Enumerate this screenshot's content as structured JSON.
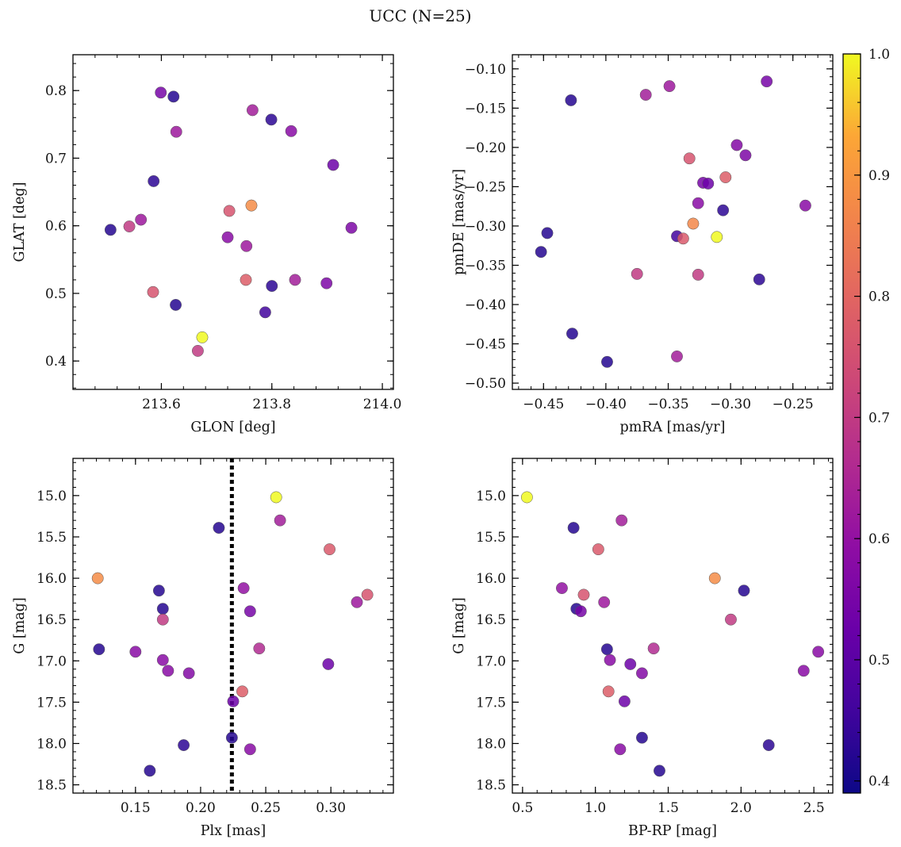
{
  "figure": {
    "title": "UCC (N=25)",
    "colorbar": {
      "colormap": "plasma",
      "range": [
        0.39,
        1.0
      ],
      "ticks": [
        "0.4",
        "0.5",
        "0.6",
        "0.7",
        "0.8",
        "0.9",
        "1.0"
      ]
    }
  },
  "chart_data": [
    {
      "type": "scatter",
      "xlabel": "GLON [deg]",
      "ylabel": "GLAT [deg]",
      "xlim": [
        213.44,
        214.02
      ],
      "ylim": [
        0.358,
        0.853
      ],
      "xticks": [
        "213.6",
        "213.8",
        "214.0"
      ],
      "yticks": [
        "0.4",
        "0.5",
        "0.6",
        "0.7",
        "0.8"
      ],
      "points": [
        {
          "x": 213.599,
          "y": 0.797,
          "c": 0.55
        },
        {
          "x": 213.622,
          "y": 0.791,
          "c": 0.42
        },
        {
          "x": 213.765,
          "y": 0.771,
          "c": 0.63
        },
        {
          "x": 213.799,
          "y": 0.757,
          "c": 0.43
        },
        {
          "x": 213.835,
          "y": 0.74,
          "c": 0.58
        },
        {
          "x": 213.627,
          "y": 0.739,
          "c": 0.62
        },
        {
          "x": 213.911,
          "y": 0.69,
          "c": 0.53
        },
        {
          "x": 213.586,
          "y": 0.666,
          "c": 0.43
        },
        {
          "x": 213.763,
          "y": 0.63,
          "c": 0.88
        },
        {
          "x": 213.723,
          "y": 0.622,
          "c": 0.76
        },
        {
          "x": 213.563,
          "y": 0.609,
          "c": 0.62
        },
        {
          "x": 213.508,
          "y": 0.594,
          "c": 0.42
        },
        {
          "x": 213.542,
          "y": 0.599,
          "c": 0.7
        },
        {
          "x": 213.944,
          "y": 0.597,
          "c": 0.56
        },
        {
          "x": 213.72,
          "y": 0.583,
          "c": 0.58
        },
        {
          "x": 213.754,
          "y": 0.57,
          "c": 0.62
        },
        {
          "x": 213.753,
          "y": 0.52,
          "c": 0.78
        },
        {
          "x": 213.842,
          "y": 0.52,
          "c": 0.63
        },
        {
          "x": 213.899,
          "y": 0.515,
          "c": 0.56
        },
        {
          "x": 213.8,
          "y": 0.511,
          "c": 0.43
        },
        {
          "x": 213.585,
          "y": 0.502,
          "c": 0.76
        },
        {
          "x": 213.626,
          "y": 0.483,
          "c": 0.42
        },
        {
          "x": 213.788,
          "y": 0.472,
          "c": 0.46
        },
        {
          "x": 213.674,
          "y": 0.435,
          "c": 1.0
        },
        {
          "x": 213.666,
          "y": 0.415,
          "c": 0.7
        }
      ]
    },
    {
      "type": "scatter",
      "xlabel": "pmRA [mas/yr]",
      "ylabel": "pmDE [mas/yr]",
      "xlim": [
        -0.475,
        -0.218
      ],
      "ylim": [
        -0.508,
        -0.082
      ],
      "xticks": [
        "−0.45",
        "−0.40",
        "−0.35",
        "−0.30",
        "−0.25"
      ],
      "yticks": [
        "−0.10",
        "−0.15",
        "−0.20",
        "−0.25",
        "−0.30",
        "−0.35",
        "−0.40",
        "−0.45",
        "−0.50"
      ],
      "points": [
        {
          "x": -0.271,
          "y": -0.116,
          "c": 0.55
        },
        {
          "x": -0.349,
          "y": -0.122,
          "c": 0.62
        },
        {
          "x": -0.368,
          "y": -0.133,
          "c": 0.63
        },
        {
          "x": -0.428,
          "y": -0.14,
          "c": 0.42
        },
        {
          "x": -0.295,
          "y": -0.197,
          "c": 0.57
        },
        {
          "x": -0.288,
          "y": -0.21,
          "c": 0.56
        },
        {
          "x": -0.333,
          "y": -0.214,
          "c": 0.76
        },
        {
          "x": -0.304,
          "y": -0.238,
          "c": 0.78
        },
        {
          "x": -0.322,
          "y": -0.245,
          "c": 0.55
        },
        {
          "x": -0.318,
          "y": -0.246,
          "c": 0.53
        },
        {
          "x": -0.326,
          "y": -0.271,
          "c": 0.58
        },
        {
          "x": -0.306,
          "y": -0.28,
          "c": 0.43
        },
        {
          "x": -0.24,
          "y": -0.274,
          "c": 0.58
        },
        {
          "x": -0.33,
          "y": -0.297,
          "c": 0.87
        },
        {
          "x": -0.447,
          "y": -0.309,
          "c": 0.42
        },
        {
          "x": -0.343,
          "y": -0.313,
          "c": 0.46
        },
        {
          "x": -0.338,
          "y": -0.316,
          "c": 0.77
        },
        {
          "x": -0.311,
          "y": -0.314,
          "c": 1.0
        },
        {
          "x": -0.452,
          "y": -0.333,
          "c": 0.42
        },
        {
          "x": -0.375,
          "y": -0.361,
          "c": 0.7
        },
        {
          "x": -0.326,
          "y": -0.362,
          "c": 0.7
        },
        {
          "x": -0.277,
          "y": -0.368,
          "c": 0.43
        },
        {
          "x": -0.427,
          "y": -0.437,
          "c": 0.42
        },
        {
          "x": -0.343,
          "y": -0.466,
          "c": 0.63
        },
        {
          "x": -0.399,
          "y": -0.473,
          "c": 0.42
        }
      ]
    },
    {
      "type": "scatter",
      "xlabel": "Plx [mas]",
      "ylabel": "G [mag]",
      "xlim": [
        0.102,
        0.348
      ],
      "ylim": [
        18.6,
        14.55
      ],
      "y_inverted": true,
      "xticks": [
        "0.15",
        "0.20",
        "0.25",
        "0.30"
      ],
      "yticks": [
        "15.0",
        "15.5",
        "16.0",
        "16.5",
        "17.0",
        "17.5",
        "18.0",
        "18.5"
      ],
      "vline": {
        "x": 0.224,
        "style": "dotted"
      },
      "points": [
        {
          "x": 0.258,
          "y": 15.02,
          "c": 1.0
        },
        {
          "x": 0.261,
          "y": 15.3,
          "c": 0.63
        },
        {
          "x": 0.214,
          "y": 15.39,
          "c": 0.42
        },
        {
          "x": 0.299,
          "y": 15.65,
          "c": 0.77
        },
        {
          "x": 0.121,
          "y": 16.0,
          "c": 0.88
        },
        {
          "x": 0.233,
          "y": 16.12,
          "c": 0.6
        },
        {
          "x": 0.168,
          "y": 16.15,
          "c": 0.42
        },
        {
          "x": 0.328,
          "y": 16.2,
          "c": 0.76
        },
        {
          "x": 0.32,
          "y": 16.29,
          "c": 0.62
        },
        {
          "x": 0.171,
          "y": 16.37,
          "c": 0.42
        },
        {
          "x": 0.238,
          "y": 16.4,
          "c": 0.55
        },
        {
          "x": 0.171,
          "y": 16.5,
          "c": 0.7
        },
        {
          "x": 0.122,
          "y": 16.86,
          "c": 0.42
        },
        {
          "x": 0.245,
          "y": 16.85,
          "c": 0.66
        },
        {
          "x": 0.15,
          "y": 16.89,
          "c": 0.58
        },
        {
          "x": 0.171,
          "y": 16.99,
          "c": 0.58
        },
        {
          "x": 0.298,
          "y": 17.04,
          "c": 0.53
        },
        {
          "x": 0.175,
          "y": 17.12,
          "c": 0.58
        },
        {
          "x": 0.191,
          "y": 17.15,
          "c": 0.57
        },
        {
          "x": 0.232,
          "y": 17.37,
          "c": 0.78
        },
        {
          "x": 0.225,
          "y": 17.49,
          "c": 0.53
        },
        {
          "x": 0.224,
          "y": 17.93,
          "c": 0.42
        },
        {
          "x": 0.187,
          "y": 18.02,
          "c": 0.43
        },
        {
          "x": 0.238,
          "y": 18.07,
          "c": 0.58
        },
        {
          "x": 0.161,
          "y": 18.33,
          "c": 0.42
        }
      ]
    },
    {
      "type": "scatter",
      "xlabel": "BP-RP [mag]",
      "ylabel": "G [mag]",
      "xlim": [
        0.43,
        2.63
      ],
      "ylim": [
        18.6,
        14.55
      ],
      "y_inverted": true,
      "xticks": [
        "0.5",
        "1.0",
        "1.5",
        "2.0",
        "2.5"
      ],
      "yticks": [
        "15.0",
        "15.5",
        "16.0",
        "16.5",
        "17.0",
        "17.5",
        "18.0",
        "18.5"
      ],
      "points": [
        {
          "x": 0.53,
          "y": 15.02,
          "c": 1.0
        },
        {
          "x": 1.18,
          "y": 15.3,
          "c": 0.63
        },
        {
          "x": 0.85,
          "y": 15.39,
          "c": 0.42
        },
        {
          "x": 1.02,
          "y": 15.65,
          "c": 0.77
        },
        {
          "x": 1.82,
          "y": 16.0,
          "c": 0.88
        },
        {
          "x": 0.77,
          "y": 16.12,
          "c": 0.6
        },
        {
          "x": 2.02,
          "y": 16.15,
          "c": 0.42
        },
        {
          "x": 0.92,
          "y": 16.2,
          "c": 0.76
        },
        {
          "x": 1.06,
          "y": 16.29,
          "c": 0.62
        },
        {
          "x": 0.87,
          "y": 16.37,
          "c": 0.42
        },
        {
          "x": 0.9,
          "y": 16.4,
          "c": 0.55
        },
        {
          "x": 1.93,
          "y": 16.5,
          "c": 0.7
        },
        {
          "x": 1.08,
          "y": 16.86,
          "c": 0.42
        },
        {
          "x": 1.4,
          "y": 16.85,
          "c": 0.66
        },
        {
          "x": 2.53,
          "y": 16.89,
          "c": 0.58
        },
        {
          "x": 1.1,
          "y": 16.99,
          "c": 0.58
        },
        {
          "x": 1.24,
          "y": 17.04,
          "c": 0.53
        },
        {
          "x": 2.43,
          "y": 17.12,
          "c": 0.58
        },
        {
          "x": 1.32,
          "y": 17.15,
          "c": 0.57
        },
        {
          "x": 1.09,
          "y": 17.37,
          "c": 0.78
        },
        {
          "x": 1.2,
          "y": 17.49,
          "c": 0.53
        },
        {
          "x": 1.32,
          "y": 17.93,
          "c": 0.42
        },
        {
          "x": 2.19,
          "y": 18.02,
          "c": 0.43
        },
        {
          "x": 1.17,
          "y": 18.07,
          "c": 0.58
        },
        {
          "x": 1.44,
          "y": 18.33,
          "c": 0.42
        }
      ]
    }
  ]
}
